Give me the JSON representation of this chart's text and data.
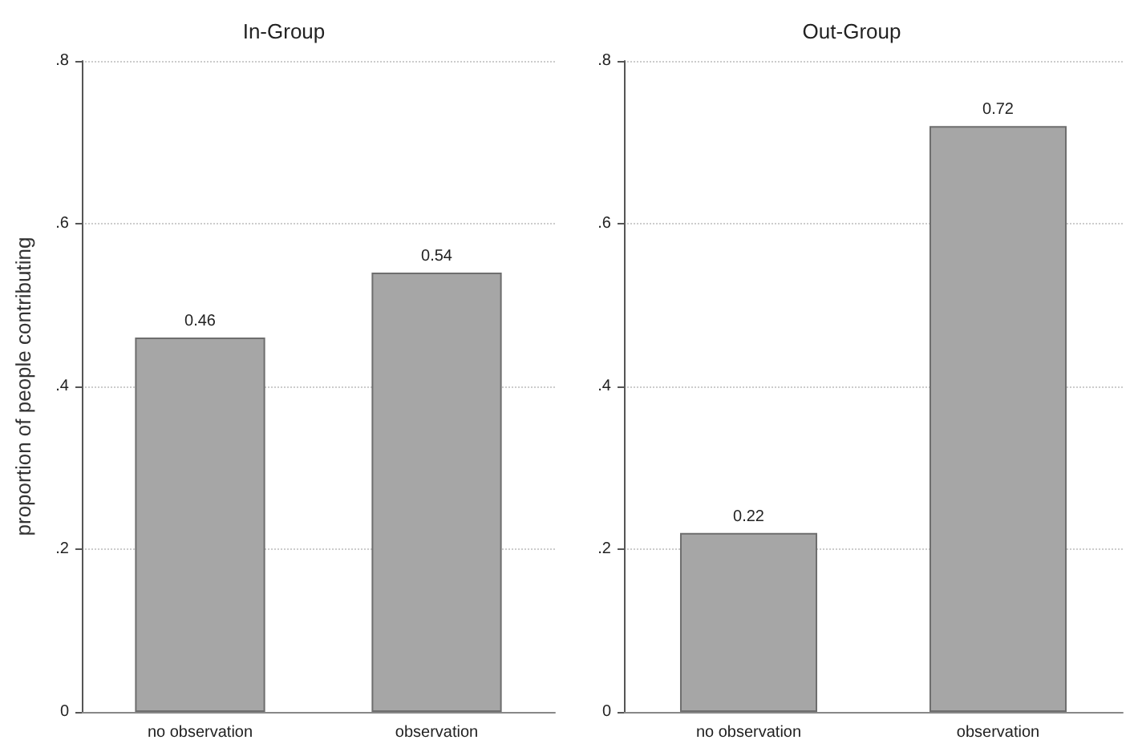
{
  "chart_data": [
    {
      "type": "bar",
      "title": "In-Group",
      "ylabel": "proportion of people contributing",
      "categories": [
        "no observation",
        "observation"
      ],
      "values": [
        0.46,
        0.54
      ],
      "color": "#a6a6a6",
      "ylim": [
        0,
        0.8
      ],
      "yticks": [
        0,
        {
          "value": 0.2,
          "label": ".2"
        },
        {
          "value": 0.4,
          "label": ".4"
        },
        {
          "value": 0.6,
          "label": ".6"
        },
        {
          "value": 0.8,
          "label": ".8"
        }
      ],
      "grid": "y",
      "data_labels": true
    },
    {
      "type": "bar",
      "title": "Out-Group",
      "categories": [
        "no observation",
        "observation"
      ],
      "values": [
        0.22,
        0.72
      ],
      "color": "#a6a6a6",
      "ylim": [
        0,
        0.8
      ],
      "yticks": [
        0,
        {
          "value": 0.2,
          "label": ".2"
        },
        {
          "value": 0.4,
          "label": ".4"
        },
        {
          "value": 0.6,
          "label": ".6"
        },
        {
          "value": 0.8,
          "label": ".8"
        }
      ],
      "grid": "y",
      "data_labels": true
    }
  ]
}
